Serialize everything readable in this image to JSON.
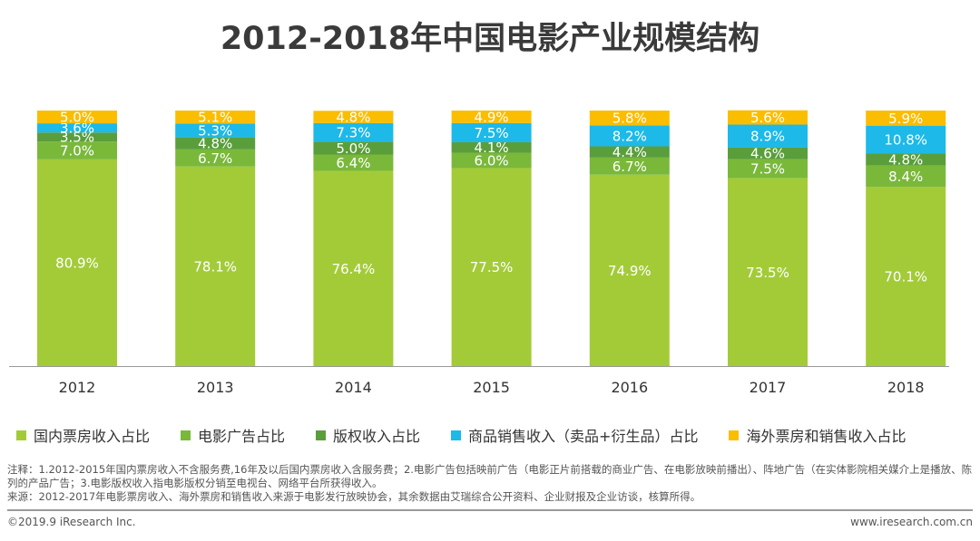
{
  "title": "2012-2018年中国电影产业规模结构",
  "chart_data": {
    "type": "bar",
    "stacked": true,
    "title": "2012-2018年中国电影产业规模结构",
    "categories": [
      "2012",
      "2013",
      "2014",
      "2015",
      "2016",
      "2017",
      "2018"
    ],
    "ylim": [
      0,
      100
    ],
    "grid": false,
    "legend_position": "bottom",
    "series": [
      {
        "name": "国内票房收入占比",
        "color": "#a3cb38",
        "values": [
          80.9,
          78.1,
          76.4,
          77.5,
          74.9,
          73.5,
          70.1
        ]
      },
      {
        "name": "电影广告占比",
        "color": "#7ab83a",
        "values": [
          7.0,
          6.7,
          6.4,
          6.0,
          6.7,
          7.5,
          8.4
        ]
      },
      {
        "name": "版权收入占比",
        "color": "#5a9e3c",
        "values": [
          3.5,
          4.8,
          5.0,
          4.1,
          4.4,
          4.6,
          4.8
        ]
      },
      {
        "name": "商品销售收入（卖品+衍生品）占比",
        "color": "#1db9e8",
        "values": [
          3.6,
          5.3,
          7.3,
          7.5,
          8.2,
          8.9,
          10.8
        ]
      },
      {
        "name": "海外票房和销售收入占比",
        "color": "#fbbd00",
        "values": [
          5.0,
          5.1,
          4.8,
          4.9,
          5.8,
          5.6,
          5.9
        ]
      }
    ]
  },
  "notes": [
    "注释：1.2012-2015年国内票房收入不含服务费,16年及以后国内票房收入含服务费；2.电影广告包括映前广告（电影正片前搭载的商业广告、在电影放映前播出）、阵地广告（在实体影院相关媒介上是播放、陈列的产品广告；3.电影版权收入指电影版权分销至电视台、网络平台所获得收入。",
    "来源：2012-2017年电影票房收入、海外票房和销售收入来源于电影发行放映协会，其余数据由艾瑞综合公开资料、企业财报及企业访谈，核算所得。"
  ],
  "footer": {
    "copyright": "©2019.9 iResearch Inc.",
    "website": "www.iresearch.com.cn"
  }
}
